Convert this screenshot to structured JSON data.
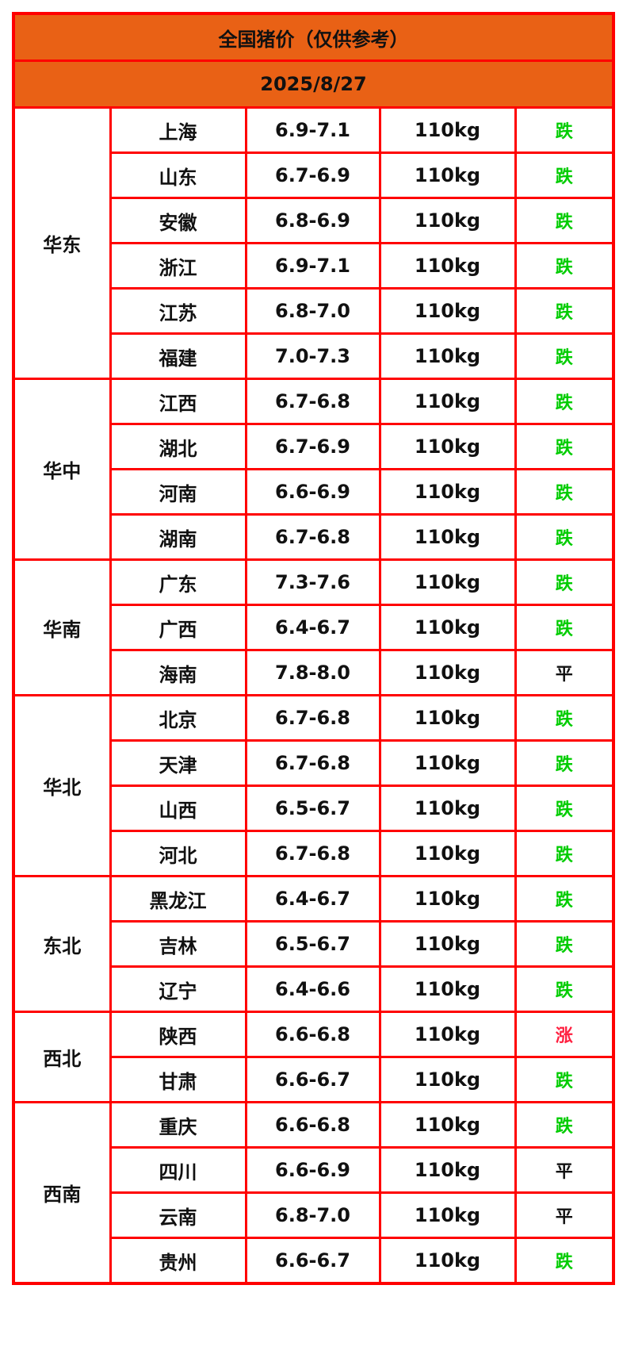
{
  "title": "全国猪价（仅供参考）",
  "date": "2025/8/27",
  "colors": {
    "header_bg": "#e96115",
    "border": "#ff0000",
    "down": "#00cc00",
    "up": "#ff2040",
    "flat": "#111111"
  },
  "regions": [
    {
      "name": "华东",
      "rows": [
        {
          "province": "上海",
          "price": "6.9-7.1",
          "weight": "110kg",
          "trend": "跌"
        },
        {
          "province": "山东",
          "price": "6.7-6.9",
          "weight": "110kg",
          "trend": "跌"
        },
        {
          "province": "安徽",
          "price": "6.8-6.9",
          "weight": "110kg",
          "trend": "跌"
        },
        {
          "province": "浙江",
          "price": "6.9-7.1",
          "weight": "110kg",
          "trend": "跌"
        },
        {
          "province": "江苏",
          "price": "6.8-7.0",
          "weight": "110kg",
          "trend": "跌"
        },
        {
          "province": "福建",
          "price": "7.0-7.3",
          "weight": "110kg",
          "trend": "跌"
        }
      ]
    },
    {
      "name": "华中",
      "rows": [
        {
          "province": "江西",
          "price": "6.7-6.8",
          "weight": "110kg",
          "trend": "跌"
        },
        {
          "province": "湖北",
          "price": "6.7-6.9",
          "weight": "110kg",
          "trend": "跌"
        },
        {
          "province": "河南",
          "price": "6.6-6.9",
          "weight": "110kg",
          "trend": "跌"
        },
        {
          "province": "湖南",
          "price": "6.7-6.8",
          "weight": "110kg",
          "trend": "跌"
        }
      ]
    },
    {
      "name": "华南",
      "rows": [
        {
          "province": "广东",
          "price": "7.3-7.6",
          "weight": "110kg",
          "trend": "跌"
        },
        {
          "province": "广西",
          "price": "6.4-6.7",
          "weight": "110kg",
          "trend": "跌"
        },
        {
          "province": "海南",
          "price": "7.8-8.0",
          "weight": "110kg",
          "trend": "平"
        }
      ]
    },
    {
      "name": "华北",
      "rows": [
        {
          "province": "北京",
          "price": "6.7-6.8",
          "weight": "110kg",
          "trend": "跌"
        },
        {
          "province": "天津",
          "price": "6.7-6.8",
          "weight": "110kg",
          "trend": "跌"
        },
        {
          "province": "山西",
          "price": "6.5-6.7",
          "weight": "110kg",
          "trend": "跌"
        },
        {
          "province": "河北",
          "price": "6.7-6.8",
          "weight": "110kg",
          "trend": "跌"
        }
      ]
    },
    {
      "name": "东北",
      "rows": [
        {
          "province": "黑龙江",
          "price": "6.4-6.7",
          "weight": "110kg",
          "trend": "跌"
        },
        {
          "province": "吉林",
          "price": "6.5-6.7",
          "weight": "110kg",
          "trend": "跌"
        },
        {
          "province": "辽宁",
          "price": "6.4-6.6",
          "weight": "110kg",
          "trend": "跌"
        }
      ]
    },
    {
      "name": "西北",
      "rows": [
        {
          "province": "陕西",
          "price": "6.6-6.8",
          "weight": "110kg",
          "trend": "涨"
        },
        {
          "province": "甘肃",
          "price": "6.6-6.7",
          "weight": "110kg",
          "trend": "跌"
        }
      ]
    },
    {
      "name": "西南",
      "rows": [
        {
          "province": "重庆",
          "price": "6.6-6.8",
          "weight": "110kg",
          "trend": "跌"
        },
        {
          "province": "四川",
          "price": "6.6-6.9",
          "weight": "110kg",
          "trend": "平"
        },
        {
          "province": "云南",
          "price": "6.8-7.0",
          "weight": "110kg",
          "trend": "平"
        },
        {
          "province": "贵州",
          "price": "6.6-6.7",
          "weight": "110kg",
          "trend": "跌"
        }
      ]
    }
  ]
}
